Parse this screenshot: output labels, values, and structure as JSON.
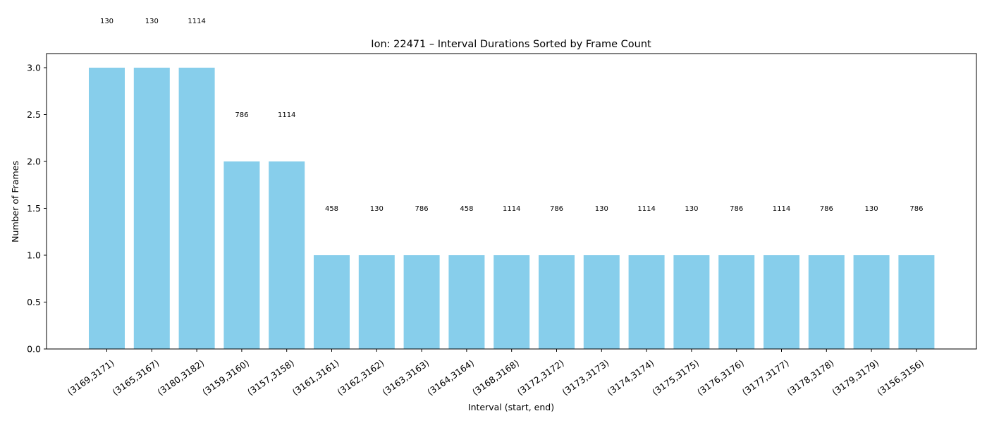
{
  "chart_data": {
    "type": "bar",
    "title": "Ion: 22471 – Interval Durations Sorted by Frame Count",
    "xlabel": "Interval (start, end)",
    "ylabel": "Number of Frames",
    "ylim": [
      0,
      3.15
    ],
    "yticks": [
      "0.0",
      "0.5",
      "1.0",
      "1.5",
      "2.0",
      "2.5",
      "3.0"
    ],
    "grid": false,
    "bar_color": "#87ceeb",
    "categories": [
      "(3169,3171)",
      "(3165,3167)",
      "(3180,3182)",
      "(3159,3160)",
      "(3157,3158)",
      "(3161,3161)",
      "(3162,3162)",
      "(3163,3163)",
      "(3164,3164)",
      "(3168,3168)",
      "(3172,3172)",
      "(3173,3173)",
      "(3174,3174)",
      "(3175,3175)",
      "(3176,3176)",
      "(3177,3177)",
      "(3178,3178)",
      "(3179,3179)",
      "(3156,3156)"
    ],
    "values": [
      3,
      3,
      3,
      2,
      2,
      1,
      1,
      1,
      1,
      1,
      1,
      1,
      1,
      1,
      1,
      1,
      1,
      1,
      1
    ],
    "annotations": [
      "130",
      "130",
      "1114",
      "786",
      "1114",
      "458",
      "130",
      "786",
      "458",
      "1114",
      "786",
      "130",
      "1114",
      "130",
      "786",
      "1114",
      "786",
      "130",
      "786"
    ]
  }
}
